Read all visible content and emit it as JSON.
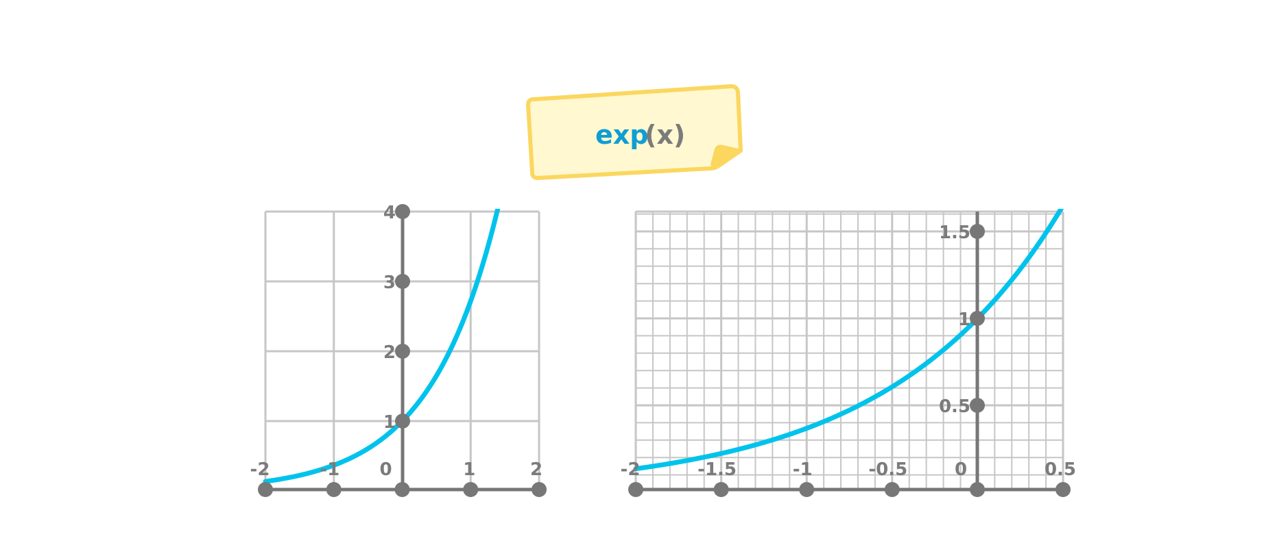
{
  "label": {
    "function": "exp",
    "argument": "(x)"
  },
  "colors": {
    "curve": "#00c3ec",
    "axis": "#777777",
    "grid": "#c6c6c6",
    "label_text": "#7b7b7b",
    "note_fill": "#fff8d0",
    "note_border": "#fbd760",
    "function_text": "#0f9ed4"
  },
  "chart_data": [
    {
      "type": "line",
      "function": "exp(x)",
      "xlim": [
        -2,
        2
      ],
      "ylim": [
        0,
        4
      ],
      "x_ticks": [
        -2,
        -1,
        0,
        1,
        2
      ],
      "x_tick_labels": [
        "-2",
        "-1",
        "0",
        "1",
        "2"
      ],
      "y_ticks": [
        1,
        2,
        3,
        4
      ],
      "y_tick_labels": [
        "1",
        "2",
        "3",
        "4"
      ],
      "grid": true,
      "series": [
        {
          "x": [
            -2,
            -1.5,
            -1,
            -0.5,
            0,
            0.5,
            1,
            1.25,
            1.5,
            1.75,
            1.9,
            2
          ],
          "y": [
            0.14,
            0.22,
            0.37,
            0.61,
            1.0,
            1.65,
            2.72,
            3.49,
            4.0,
            4.0,
            4.0,
            4.0
          ]
        }
      ]
    },
    {
      "type": "line",
      "function": "exp(x)",
      "xlim": [
        -2,
        0.5
      ],
      "ylim": [
        0,
        1.65
      ],
      "x_ticks": [
        -2,
        -1.5,
        -1,
        -0.5,
        0,
        0.5
      ],
      "x_tick_labels": [
        "-2",
        "-1.5",
        "-1",
        "-0.5",
        "0",
        "0.5"
      ],
      "y_ticks": [
        0.5,
        1,
        1.5
      ],
      "y_tick_labels": [
        "0.5",
        "1",
        "1.5"
      ],
      "grid": true,
      "series": [
        {
          "x": [
            -2,
            -1.75,
            -1.5,
            -1.25,
            -1,
            -0.75,
            -0.5,
            -0.25,
            0,
            0.25,
            0.5
          ],
          "y": [
            0.135,
            0.174,
            0.223,
            0.287,
            0.368,
            0.472,
            0.607,
            0.779,
            1.0,
            1.284,
            1.649
          ]
        }
      ]
    }
  ]
}
